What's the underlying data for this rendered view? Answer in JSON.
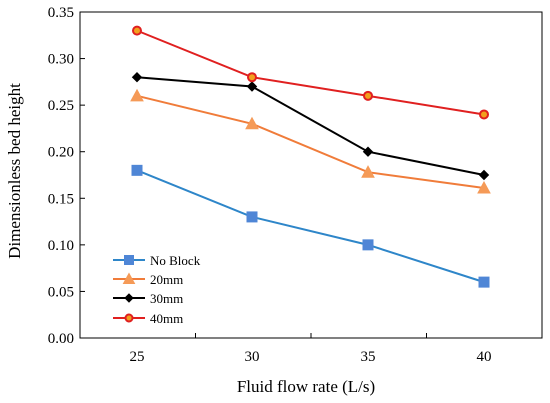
{
  "chart_data": {
    "type": "line",
    "title": "",
    "xlabel": "Fluid flow rate (L/s)",
    "ylabel": "Dimensionless bed height",
    "categories": [
      "25",
      "30",
      "35",
      "40"
    ],
    "ylim": [
      0,
      0.35
    ],
    "yticks": [
      "0.00",
      "0.05",
      "0.10",
      "0.15",
      "0.20",
      "0.25",
      "0.30",
      "0.35"
    ],
    "grid": false,
    "legend_position": "bottom-left",
    "series": [
      {
        "name": "No Block",
        "values": [
          0.18,
          0.13,
          0.1,
          0.06
        ],
        "color": "#2E86C9",
        "marker": "square",
        "marker_fill": "#4F86D6"
      },
      {
        "name": "20mm",
        "values": [
          0.26,
          0.23,
          0.178,
          0.161
        ],
        "color": "#F07C3A",
        "marker": "triangle",
        "marker_fill": "#F59A57"
      },
      {
        "name": "30mm",
        "values": [
          0.28,
          0.27,
          0.2,
          0.175
        ],
        "color": "#000000",
        "marker": "diamond",
        "marker_fill": "#000000"
      },
      {
        "name": "40mm",
        "values": [
          0.33,
          0.28,
          0.26,
          0.24
        ],
        "color": "#E02020",
        "marker": "circle",
        "marker_fill": "#F2A01E"
      }
    ]
  }
}
